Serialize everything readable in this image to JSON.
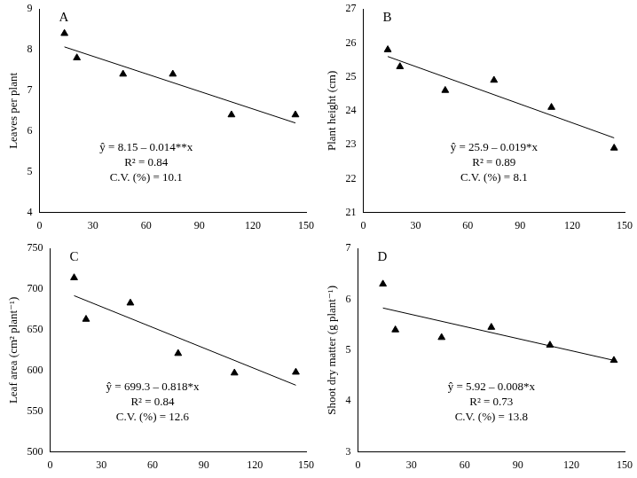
{
  "chart_data": [
    {
      "type": "scatter",
      "title": "A",
      "y_label": "Leaves per plant",
      "annotations": [
        "ŷ = 8.15 – 0.014**x",
        "R² = 0.84",
        "C.V. (%) = 10.1"
      ],
      "xlim": [
        0,
        150
      ],
      "xticks": [
        0,
        30,
        60,
        90,
        120,
        150
      ],
      "ylim": [
        4,
        9
      ],
      "yticks": [
        4,
        5,
        6,
        7,
        8,
        9
      ],
      "grid": false,
      "series": [
        {
          "type": "scatter",
          "marker": "triangle",
          "color": "#000000",
          "x": [
            14,
            21,
            47,
            75,
            108,
            144
          ],
          "values": [
            8.4,
            7.8,
            7.4,
            7.4,
            6.4,
            6.4
          ]
        },
        {
          "type": "line",
          "line_style": "solid",
          "color": "#000000",
          "x": [
            14,
            144
          ],
          "values": [
            8.07,
            6.2
          ]
        }
      ]
    },
    {
      "type": "scatter",
      "title": "B",
      "y_label": "Plant height (cm)",
      "annotations": [
        "ŷ = 25.9 – 0.019*x",
        "R² = 0.89",
        "C.V. (%) = 8.1"
      ],
      "xlim": [
        0,
        150
      ],
      "xticks": [
        0,
        30,
        60,
        90,
        120,
        150
      ],
      "ylim": [
        21,
        27
      ],
      "yticks": [
        21,
        22,
        23,
        24,
        25,
        26,
        27
      ],
      "grid": false,
      "series": [
        {
          "type": "scatter",
          "marker": "triangle",
          "color": "#000000",
          "x": [
            14,
            21,
            47,
            75,
            108,
            144
          ],
          "values": [
            25.8,
            25.3,
            24.6,
            24.9,
            24.1,
            22.9
          ]
        },
        {
          "type": "line",
          "line_style": "solid",
          "color": "#000000",
          "x": [
            14,
            144
          ],
          "values": [
            25.6,
            23.2
          ]
        }
      ]
    },
    {
      "type": "scatter",
      "title": "C",
      "y_label": "Leaf area (cm² plant⁻¹)",
      "annotations": [
        "ŷ = 699.3 – 0.818*x",
        "R² = 0.84",
        "C.V. (%) = 12.6"
      ],
      "xlim": [
        0,
        150
      ],
      "xticks": [
        0,
        30,
        60,
        90,
        120,
        150
      ],
      "ylim": [
        500,
        750
      ],
      "yticks": [
        500,
        550,
        600,
        650,
        700,
        750
      ],
      "grid": false,
      "series": [
        {
          "type": "scatter",
          "marker": "triangle",
          "color": "#000000",
          "x": [
            14,
            21,
            47,
            75,
            108,
            144
          ],
          "values": [
            714,
            663,
            683,
            621,
            597,
            598
          ]
        },
        {
          "type": "line",
          "line_style": "solid",
          "color": "#000000",
          "x": [
            14,
            144
          ],
          "values": [
            692,
            582
          ]
        }
      ]
    },
    {
      "type": "scatter",
      "title": "D",
      "y_label": "Shoot dry matter (g plant⁻¹)",
      "annotations": [
        "ŷ = 5.92 – 0.008*x",
        "R² = 0.73",
        "C.V. (%) = 13.8"
      ],
      "xlim": [
        0,
        150
      ],
      "xticks": [
        0,
        30,
        60,
        90,
        120,
        150
      ],
      "ylim": [
        3,
        7
      ],
      "yticks": [
        3,
        4,
        5,
        6,
        7
      ],
      "grid": false,
      "series": [
        {
          "type": "scatter",
          "marker": "triangle",
          "color": "#000000",
          "x": [
            14,
            21,
            47,
            75,
            108,
            144
          ],
          "values": [
            6.3,
            5.4,
            5.25,
            5.45,
            5.1,
            4.8
          ]
        },
        {
          "type": "line",
          "line_style": "solid",
          "color": "#000000",
          "x": [
            14,
            144
          ],
          "values": [
            5.83,
            4.8
          ]
        }
      ]
    }
  ]
}
